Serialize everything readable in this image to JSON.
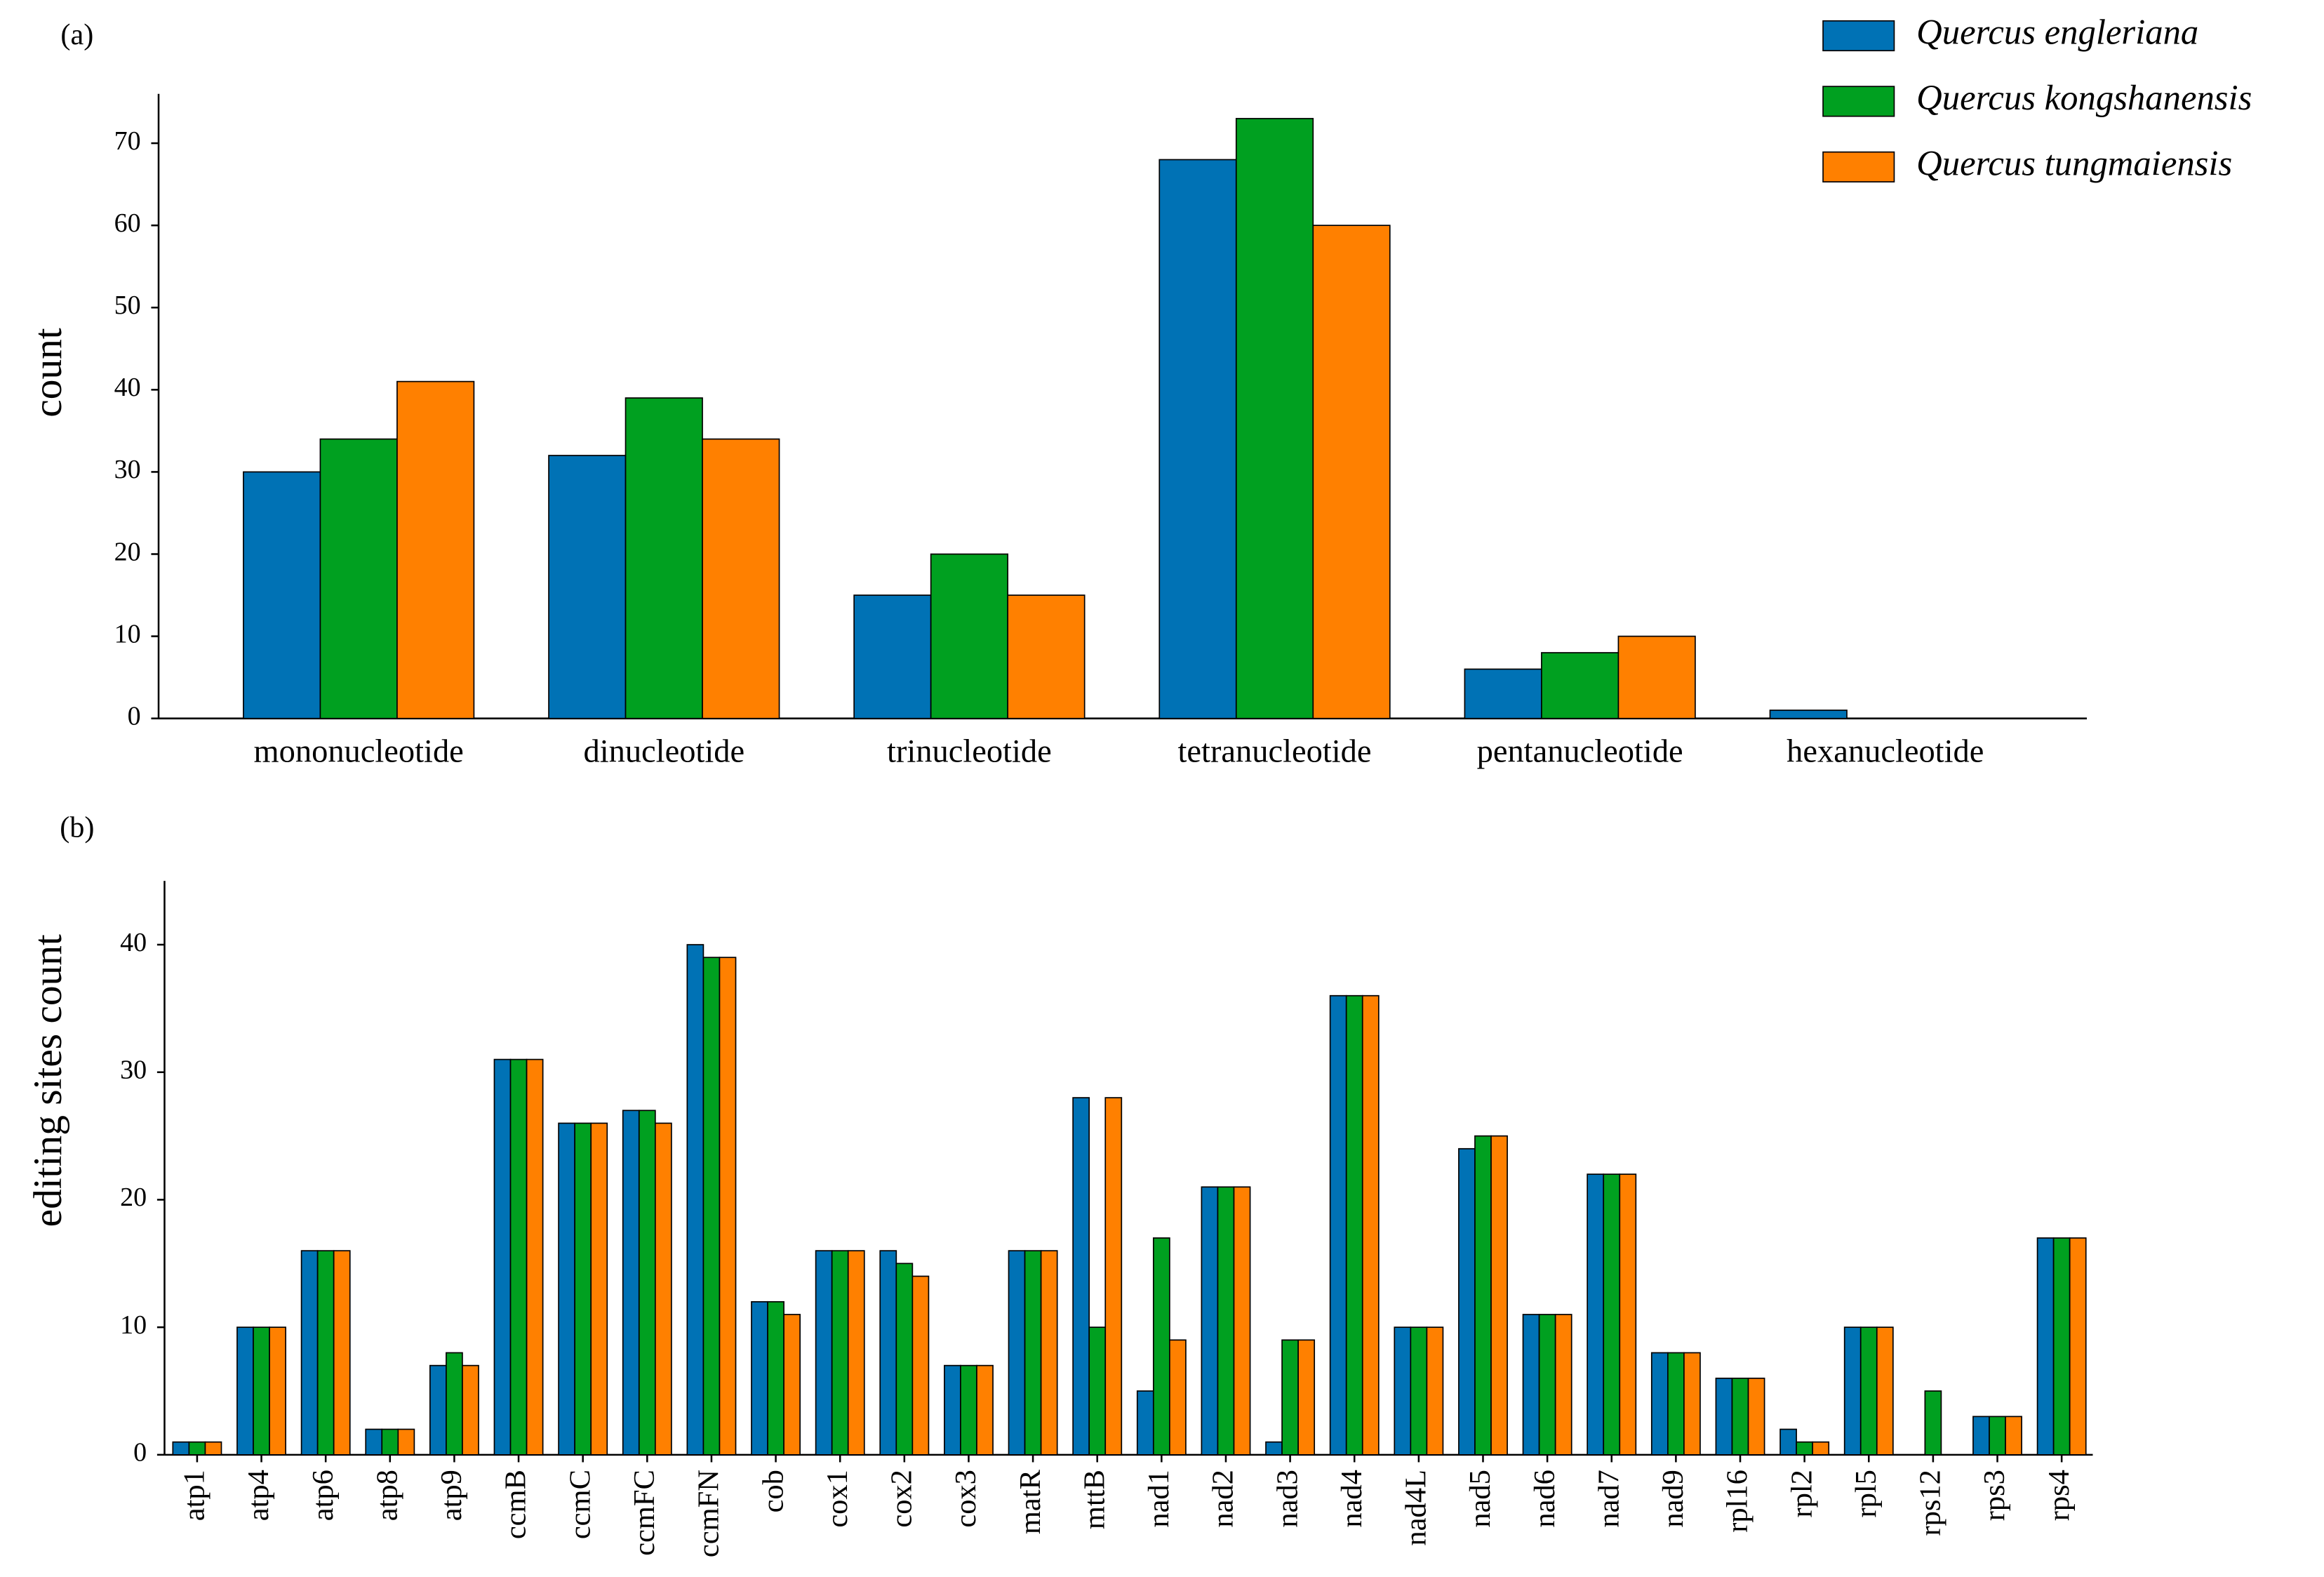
{
  "chart_data": [
    {
      "type": "bar",
      "panel_label": "(a)",
      "ylabel": "count",
      "categories": [
        "mononucleotide",
        "dinucleotide",
        "trinucleotide",
        "tetranucleotide",
        "pentanucleotide",
        "hexanucleotide"
      ],
      "series": [
        {
          "name": "Quercus engleriana",
          "color": "#0072b5",
          "values": [
            30,
            32,
            15,
            68,
            6,
            1
          ]
        },
        {
          "name": "Quercus kongshanensis",
          "color": "#00a020",
          "values": [
            34,
            39,
            20,
            73,
            8,
            0
          ]
        },
        {
          "name": "Quercus tungmaiensis",
          "color": "#ff8000",
          "values": [
            41,
            34,
            15,
            60,
            10,
            0
          ]
        }
      ],
      "ylim": [
        0,
        76
      ],
      "yticks": [
        0,
        10,
        20,
        30,
        40,
        50,
        60,
        70
      ],
      "legend": "upper right"
    },
    {
      "type": "bar",
      "panel_label": "(b)",
      "ylabel": "editing sites count",
      "categories": [
        "atp1",
        "atp4",
        "atp6",
        "atp8",
        "atp9",
        "ccmB",
        "ccmC",
        "ccmFC",
        "ccmFN",
        "cob",
        "cox1",
        "cox2",
        "cox3",
        "matR",
        "mttB",
        "nad1",
        "nad2",
        "nad3",
        "nad4",
        "nad4L",
        "nad5",
        "nad6",
        "nad7",
        "nad9",
        "rpl16",
        "rpl2",
        "rpl5",
        "rps12",
        "rps3",
        "rps4"
      ],
      "series": [
        {
          "color": "#0072b5",
          "values": [
            1,
            10,
            16,
            2,
            7,
            31,
            26,
            27,
            40,
            12,
            16,
            16,
            7,
            16,
            28,
            5,
            21,
            1,
            36,
            10,
            24,
            11,
            22,
            8,
            6,
            2,
            10,
            0,
            3,
            17
          ]
        },
        {
          "color": "#00a020",
          "values": [
            1,
            10,
            16,
            2,
            8,
            31,
            26,
            27,
            39,
            12,
            16,
            15,
            7,
            16,
            10,
            17,
            21,
            9,
            36,
            10,
            25,
            11,
            22,
            8,
            6,
            1,
            10,
            5,
            3,
            17
          ]
        },
        {
          "color": "#ff8000",
          "values": [
            1,
            10,
            16,
            2,
            7,
            31,
            26,
            26,
            39,
            11,
            16,
            14,
            7,
            16,
            28,
            9,
            21,
            9,
            36,
            10,
            25,
            11,
            22,
            8,
            6,
            1,
            10,
            0,
            3,
            17
          ]
        }
      ],
      "ylim": [
        0,
        45
      ],
      "yticks": [
        0,
        10,
        20,
        30,
        40
      ],
      "xlabel_rotation": 90
    }
  ]
}
